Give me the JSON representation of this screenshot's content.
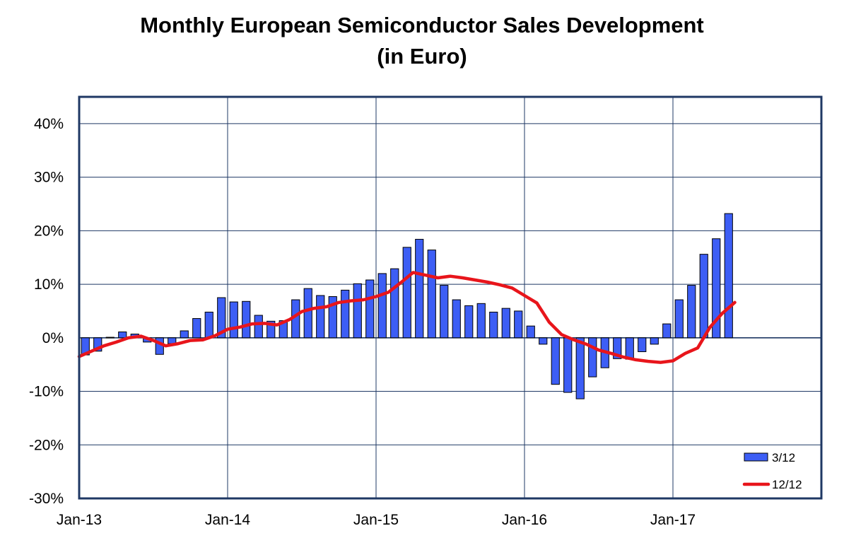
{
  "title": {
    "line1": "Monthly European Semiconductor Sales Development",
    "line2": "(in Euro)"
  },
  "chart_data": {
    "type": "bar",
    "title": "Monthly European Semiconductor Sales Development (in Euro)",
    "xlabel": "",
    "ylabel": "",
    "ylim": [
      -30,
      45
    ],
    "yticks": [
      40,
      30,
      20,
      10,
      0,
      -10,
      -20,
      -30
    ],
    "ytick_labels": [
      "40%",
      "30%",
      "20%",
      "10%",
      "0%",
      "-10%",
      "-20%",
      "-30%"
    ],
    "xticks": [
      {
        "month_index": 0,
        "label": "Jan-13"
      },
      {
        "month_index": 12,
        "label": "Jan-14"
      },
      {
        "month_index": 24,
        "label": "Jan-15"
      },
      {
        "month_index": 36,
        "label": "Jan-16"
      },
      {
        "month_index": 48,
        "label": "Jan-17"
      }
    ],
    "x_months_total": 60,
    "grid": true,
    "legend_position": "bottom-right",
    "colors": {
      "bars": "#3d5ef5",
      "bar_edge": "#000000",
      "line": "#e8151b",
      "frame": "#1f3864",
      "grid": "#1f3864"
    },
    "series": [
      {
        "name": "3/12",
        "type": "bar",
        "values": [
          -3.2,
          -2.5,
          0.1,
          1.1,
          0.7,
          -0.8,
          -3.1,
          -1.1,
          1.3,
          3.6,
          4.8,
          7.5,
          6.7,
          6.8,
          4.2,
          3.1,
          3.2,
          7.1,
          9.2,
          7.9,
          7.7,
          8.9,
          10.1,
          10.8,
          12.0,
          12.9,
          16.9,
          18.4,
          16.4,
          9.8,
          7.1,
          6.0,
          6.4,
          4.8,
          5.5,
          5.0,
          2.2,
          -1.2,
          -8.7,
          -10.2,
          -11.4,
          -7.3,
          -5.6,
          -3.9,
          -4.0,
          -2.6,
          -1.2,
          2.6,
          7.1,
          9.8,
          15.6,
          18.5,
          23.2
        ]
      },
      {
        "name": "12/12",
        "type": "line",
        "values": [
          -3.5,
          -2.5,
          -1.5,
          -0.8,
          0.0,
          0.3,
          -0.5,
          -1.5,
          -1.1,
          -0.5,
          -0.4,
          0.4,
          1.6,
          2.0,
          2.6,
          2.7,
          2.4,
          3.4,
          4.9,
          5.5,
          5.8,
          6.6,
          6.9,
          7.1,
          7.7,
          8.5,
          10.3,
          12.2,
          11.7,
          11.2,
          11.5,
          11.2,
          10.8,
          10.4,
          9.9,
          9.3,
          7.9,
          6.5,
          2.9,
          0.6,
          -0.4,
          -1.2,
          -2.3,
          -2.9,
          -3.6,
          -4.1,
          -4.4,
          -4.6,
          -4.3,
          -2.9,
          -1.9,
          2.0,
          4.6,
          6.6
        ]
      }
    ]
  }
}
